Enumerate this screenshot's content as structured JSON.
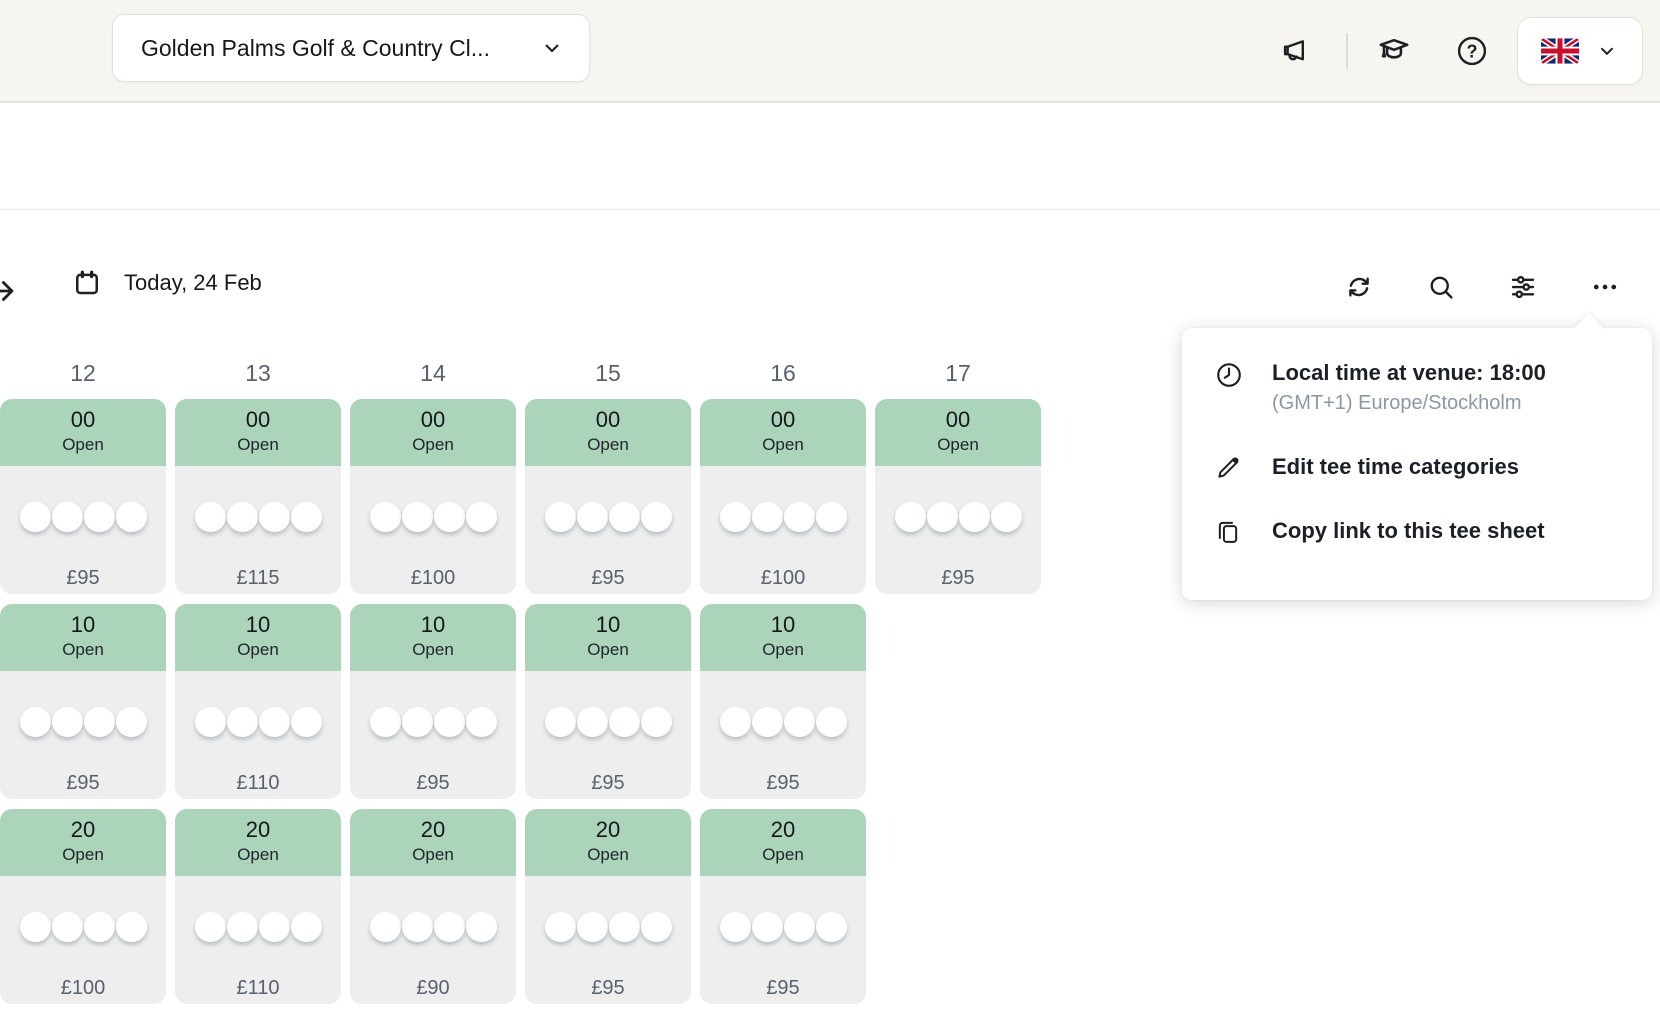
{
  "colors": {
    "slot_open_header_green": "#abd4ba",
    "slot_body_gray": "#eeeeee",
    "slate_text": "#57616e",
    "topbar_cream": "#f7f5f0"
  },
  "topbar": {
    "club_selector_label": "Golden Palms Golf & Country Cl...",
    "icons": [
      "megaphone-icon",
      "graduation-cap-icon",
      "help-icon",
      "uk-flag",
      "chevron-down-icon"
    ]
  },
  "sheet": {
    "date_label": "Today, 24 Feb",
    "toolbar_icons": [
      "refresh-icon",
      "search-icon",
      "filters-icon",
      "more-options-icon"
    ],
    "menu": {
      "local_time_title": "Local time at venue: 18:00",
      "local_time_subtitle": "(GMT+1) Europe/Stockholm",
      "items": [
        "Edit tee time categories",
        "Copy link to this tee sheet"
      ],
      "item_icons": [
        "clock-icon",
        "pencil-icon",
        "copy-icon"
      ]
    },
    "columns": [
      {
        "hour": "12",
        "slots": [
          {
            "minute": "00",
            "status": "Open",
            "price": "£95",
            "player_slots": 4
          },
          {
            "minute": "10",
            "status": "Open",
            "price": "£95",
            "player_slots": 4
          },
          {
            "minute": "20",
            "status": "Open",
            "price": "£100",
            "player_slots": 4
          }
        ]
      },
      {
        "hour": "13",
        "slots": [
          {
            "minute": "00",
            "status": "Open",
            "price": "£115",
            "player_slots": 4
          },
          {
            "minute": "10",
            "status": "Open",
            "price": "£110",
            "player_slots": 4
          },
          {
            "minute": "20",
            "status": "Open",
            "price": "£110",
            "player_slots": 4
          }
        ]
      },
      {
        "hour": "14",
        "slots": [
          {
            "minute": "00",
            "status": "Open",
            "price": "£100",
            "player_slots": 4
          },
          {
            "minute": "10",
            "status": "Open",
            "price": "£95",
            "player_slots": 4
          },
          {
            "minute": "20",
            "status": "Open",
            "price": "£90",
            "player_slots": 4
          }
        ]
      },
      {
        "hour": "15",
        "slots": [
          {
            "minute": "00",
            "status": "Open",
            "price": "£95",
            "player_slots": 4
          },
          {
            "minute": "10",
            "status": "Open",
            "price": "£95",
            "player_slots": 4
          },
          {
            "minute": "20",
            "status": "Open",
            "price": "£95",
            "player_slots": 4
          }
        ]
      },
      {
        "hour": "16",
        "slots": [
          {
            "minute": "00",
            "status": "Open",
            "price": "£100",
            "player_slots": 4
          },
          {
            "minute": "10",
            "status": "Open",
            "price": "£95",
            "player_slots": 4
          },
          {
            "minute": "20",
            "status": "Open",
            "price": "£95",
            "player_slots": 4
          }
        ]
      },
      {
        "hour": "17",
        "slots": [
          {
            "minute": "00",
            "status": "Open",
            "price": "£95",
            "player_slots": 4
          }
        ]
      }
    ]
  }
}
